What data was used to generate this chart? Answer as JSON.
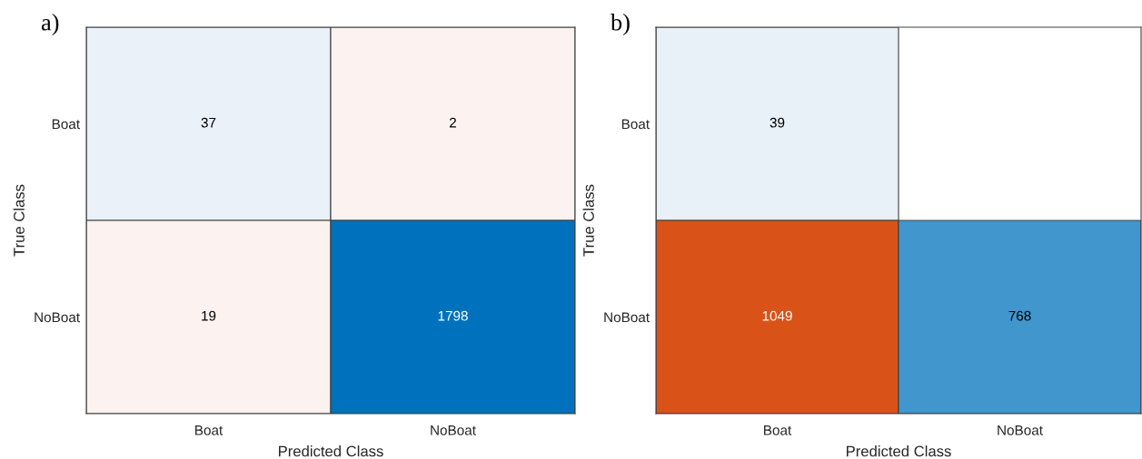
{
  "chart_data": [
    {
      "type": "heatmap",
      "title": "a)",
      "xlabel": "Predicted Class",
      "ylabel": "True Class",
      "categories": [
        "Boat",
        "NoBoat"
      ],
      "y_categories": [
        "Boat",
        "NoBoat"
      ],
      "cells": [
        [
          37,
          2
        ],
        [
          19,
          1798
        ]
      ],
      "colors": [
        [
          "#eaf1f9",
          "#fcf2ef"
        ],
        [
          "#fcf2ef",
          "#0072bd"
        ]
      ],
      "data_labels": true
    },
    {
      "type": "heatmap",
      "title": "b)",
      "xlabel": "Predicted Class",
      "ylabel": "True Class",
      "categories": [
        "Boat",
        "NoBoat"
      ],
      "y_categories": [
        "Boat",
        "NoBoat"
      ],
      "cells": [
        [
          39,
          null
        ],
        [
          1049,
          768
        ]
      ],
      "colors": [
        [
          "#e8f0f8",
          null
        ],
        [
          "#d95319",
          "#4196ce"
        ]
      ],
      "data_labels": true
    }
  ]
}
